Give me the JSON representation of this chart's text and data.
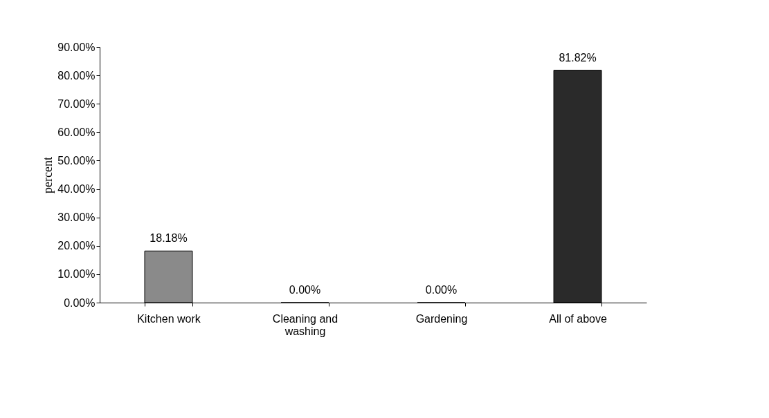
{
  "chart_data": {
    "type": "bar",
    "ylabel": "percent",
    "categories": [
      "Kitchen work",
      "Cleaning and washing",
      "Gardening",
      "All of above"
    ],
    "values": [
      18.18,
      0,
      0,
      81.82
    ],
    "colors": [
      "#8a8a8a",
      "#000000",
      "#000000",
      "#2a2a2a"
    ],
    "value_labels": [
      "18.18%",
      "0.00%",
      "0.00%",
      "81.82%"
    ],
    "ylim": [
      0,
      90
    ],
    "yticks": [
      {
        "value": 0,
        "label": "0.00%"
      },
      {
        "value": 10,
        "label": "10.00%"
      },
      {
        "value": 20,
        "label": "20.00%"
      },
      {
        "value": 30,
        "label": "30.00%"
      },
      {
        "value": 40,
        "label": "40.00%"
      },
      {
        "value": 50,
        "label": "50.00%"
      },
      {
        "value": 60,
        "label": "60.00%"
      },
      {
        "value": 70,
        "label": "70.00%"
      },
      {
        "value": 80,
        "label": "80.00%"
      },
      {
        "value": 90,
        "label": "90.00%"
      }
    ],
    "grid": false
  }
}
